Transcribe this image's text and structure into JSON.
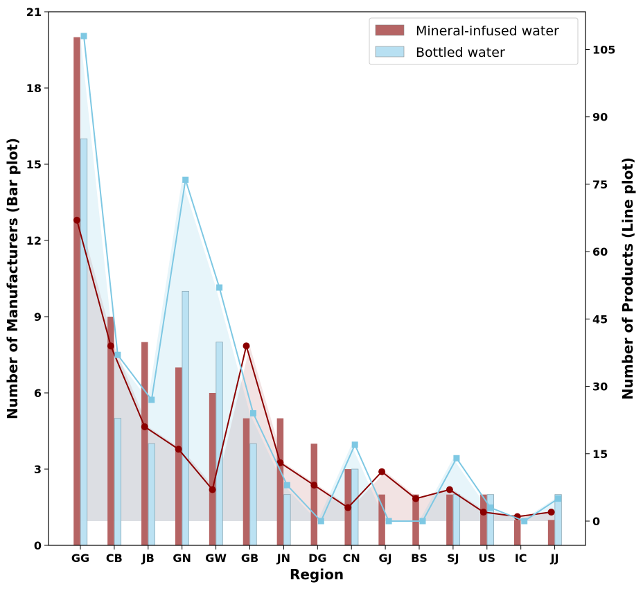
{
  "chart_data": {
    "type": "bar",
    "categories": [
      "GG",
      "CB",
      "JB",
      "GN",
      "GW",
      "GB",
      "JN",
      "DG",
      "CN",
      "GJ",
      "BS",
      "SJ",
      "US",
      "IC",
      "JJ"
    ],
    "xlabel": "Region",
    "ylabel": "Number of Manufacturers (Bar plot)",
    "y2label": "Number of Products (Line plot)",
    "ylim": [
      0,
      21
    ],
    "y2lim": [
      -5.4,
      113.4
    ],
    "yticks": [
      0,
      3,
      6,
      9,
      12,
      15,
      18,
      21
    ],
    "y2ticks": [
      0,
      15,
      30,
      45,
      60,
      75,
      90,
      105
    ],
    "legend_position": "top-right",
    "series": [
      {
        "name": "Mineral-infused water",
        "kind": "bar",
        "axis": "left",
        "color": "#b56464",
        "values": [
          20,
          9,
          8,
          7,
          6,
          5,
          5,
          4,
          3,
          2,
          2,
          2,
          2,
          1,
          1
        ]
      },
      {
        "name": "Bottled water",
        "kind": "bar",
        "axis": "left",
        "color": "#b8e0f2",
        "values": [
          16,
          5,
          4,
          10,
          8,
          4,
          2,
          0,
          3,
          0,
          0,
          2,
          2,
          0,
          2
        ]
      },
      {
        "kind": "line",
        "axis": "right",
        "color": "#8b0000",
        "marker": "circle",
        "values": [
          67,
          39,
          21,
          16,
          7,
          39,
          13,
          8,
          3,
          11,
          5,
          7,
          2,
          1,
          2
        ]
      },
      {
        "kind": "line",
        "axis": "right",
        "color": "#7ec8e3",
        "marker": "square",
        "values": [
          108,
          37,
          27,
          76,
          52,
          24,
          8,
          0,
          17,
          0,
          0,
          14,
          3,
          0,
          5
        ]
      }
    ],
    "grid": false
  }
}
